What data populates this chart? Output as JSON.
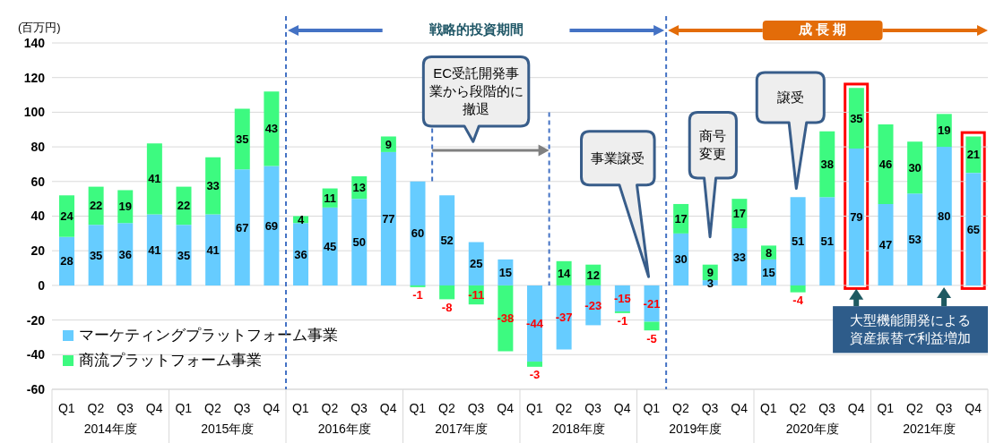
{
  "chart_data": {
    "type": "bar",
    "stacked": true,
    "ylabel": "(百万円)",
    "categories": [
      "Q1",
      "Q2",
      "Q3",
      "Q4",
      "Q1",
      "Q2",
      "Q3",
      "Q4",
      "Q1",
      "Q2",
      "Q3",
      "Q4",
      "Q1",
      "Q2",
      "Q3",
      "Q4",
      "Q1",
      "Q2",
      "Q3",
      "Q4",
      "Q1",
      "Q2",
      "Q3",
      "Q4",
      "Q1",
      "Q2",
      "Q3",
      "Q4",
      "Q1",
      "Q2",
      "Q3",
      "Q4"
    ],
    "series": [
      {
        "name": "マーケティングプラットフォーム事業",
        "color": "#66ccff",
        "values": [
          28,
          35,
          36,
          41,
          35,
          41,
          67,
          69,
          36,
          45,
          50,
          77,
          60,
          52,
          25,
          15,
          -44,
          -37,
          -23,
          -15,
          -21,
          30,
          3,
          33,
          15,
          51,
          51,
          79,
          47,
          53,
          80,
          65
        ]
      },
      {
        "name": "商流プラットフォーム事業",
        "color": "#3dfa80",
        "values": [
          24,
          22,
          19,
          41,
          22,
          33,
          35,
          43,
          4,
          11,
          13,
          9,
          -1,
          -8,
          -11,
          -38,
          -3,
          14,
          12,
          -1,
          -5,
          17,
          9,
          17,
          8,
          -4,
          38,
          35,
          46,
          30,
          19,
          21
        ]
      }
    ],
    "ylim": [
      -60,
      140
    ],
    "yticks": [
      -60,
      -40,
      -20,
      0,
      20,
      40,
      60,
      80,
      100,
      120,
      140
    ],
    "grid": "y",
    "legend": "bottom left",
    "data_labels": true,
    "annotations": [
      "2014年度",
      "2015年度",
      "2016年度",
      "2017年度",
      "2018年度",
      "2019年度",
      "2020年度",
      "2021年度",
      "戦略的投資期間",
      "成 長 期",
      "EC受託開発事業から段階的に撤退",
      "事業譲受",
      "商号変更",
      "譲受",
      "大型機能開発による資産振替で利益増加"
    ]
  }
}
